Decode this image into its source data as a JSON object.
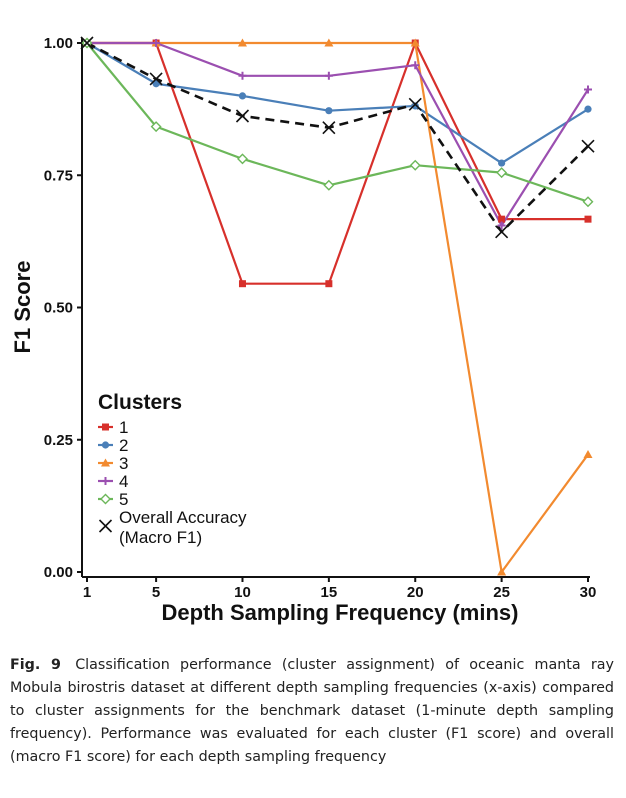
{
  "chart_data": {
    "type": "line",
    "title": "",
    "xlabel": "Depth Sampling Frequency (mins)",
    "ylabel": "F1 Score",
    "x": [
      1,
      5,
      10,
      15,
      20,
      25,
      30
    ],
    "x_tick_labels": [
      "1",
      "5",
      "10",
      "15",
      "20",
      "25",
      "30"
    ],
    "y_tick_labels": [
      "0.00",
      "0.25",
      "0.50",
      "0.75",
      "1.00"
    ],
    "y_ticks": [
      0,
      0.25,
      0.5,
      0.75,
      1.0
    ],
    "ylim": [
      0,
      1
    ],
    "legend_title": "Clusters",
    "legend_position": "bottom-left",
    "series": [
      {
        "name": "1",
        "color": "#d7302b",
        "marker": "square",
        "dashed": false,
        "values": [
          1.0,
          1.0,
          0.545,
          0.545,
          1.0,
          0.667,
          0.667
        ]
      },
      {
        "name": "2",
        "color": "#4a7fb8",
        "marker": "circle",
        "dashed": false,
        "values": [
          1.0,
          0.923,
          0.9,
          0.872,
          0.881,
          0.773,
          0.875
        ]
      },
      {
        "name": "3",
        "color": "#f28a2f",
        "marker": "triangle",
        "dashed": false,
        "values": [
          1.0,
          1.0,
          1.0,
          1.0,
          1.0,
          0.0,
          0.222
        ]
      },
      {
        "name": "4",
        "color": "#9b4fb0",
        "marker": "plus",
        "dashed": false,
        "values": [
          1.0,
          1.0,
          0.938,
          0.938,
          0.958,
          0.655,
          0.912
        ]
      },
      {
        "name": "5",
        "color": "#6cb75a",
        "marker": "diamond",
        "dashed": false,
        "values": [
          1.0,
          0.842,
          0.781,
          0.731,
          0.769,
          0.755,
          0.7
        ]
      },
      {
        "name": "Overall Accuracy (Macro F1)",
        "legend_lines": [
          "Overall Accuracy",
          "(Macro F1)"
        ],
        "color": "#111111",
        "marker": "x",
        "dashed": true,
        "values": [
          1.0,
          0.932,
          0.862,
          0.84,
          0.884,
          0.643,
          0.805
        ]
      }
    ]
  },
  "caption": {
    "label": "Fig. 9",
    "text": "Classification performance (cluster assignment) of oceanic manta ray Mobula birostris dataset at different depth sampling frequencies (x-axis) compared to cluster assignments for the benchmark dataset (1-minute depth sampling frequency). Performance was evaluated for each cluster (F1 score) and overall (macro F1 score) for each depth sampling frequency"
  }
}
